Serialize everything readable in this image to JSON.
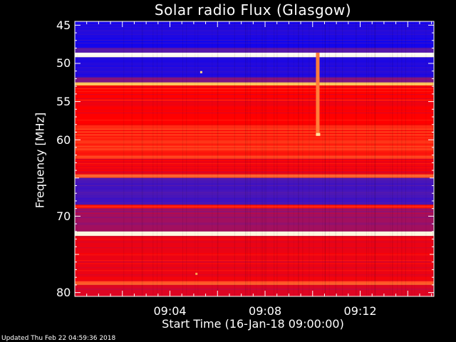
{
  "title": "Solar radio Flux (Glasgow)",
  "footer": "Updated Thu Feb 22 04:59:36 2018",
  "chart_data": {
    "type": "heatmap",
    "title": "Solar radio Flux (Glasgow)",
    "xlabel": "Start Time (16-Jan-18 09:00:00)",
    "ylabel": "Frequency [MHz]",
    "x_unit": "minutes after 09:00:00",
    "xlim": [
      0,
      15.1
    ],
    "ylim": [
      44.5,
      80.5
    ],
    "y_inverted": true,
    "xticks": [
      {
        "value": 4,
        "label": "09:04"
      },
      {
        "value": 8,
        "label": "09:08"
      },
      {
        "value": 12,
        "label": "09:12"
      }
    ],
    "yticks": [
      {
        "value": 45,
        "label": "45"
      },
      {
        "value": 50,
        "label": "50"
      },
      {
        "value": 55,
        "label": "55"
      },
      {
        "value": 60,
        "label": "60"
      },
      {
        "value": 70,
        "label": "70"
      },
      {
        "value": 80,
        "label": "80"
      }
    ],
    "colormap": [
      "#0000ff",
      "#5a1aa8",
      "#ff0000",
      "#ffd060",
      "#ffffff"
    ],
    "frequency_bands": [
      {
        "from": 44.5,
        "to": 48.0,
        "level": 0.08
      },
      {
        "from": 48.0,
        "to": 48.6,
        "level": 0.25
      },
      {
        "from": 48.6,
        "to": 49.2,
        "level": 0.97
      },
      {
        "from": 49.2,
        "to": 51.8,
        "level": 0.1
      },
      {
        "from": 51.8,
        "to": 52.5,
        "level": 0.3
      },
      {
        "from": 52.5,
        "to": 52.9,
        "level": 0.72
      },
      {
        "from": 52.9,
        "to": 58.0,
        "level": 0.5
      },
      {
        "from": 58.0,
        "to": 62.5,
        "level": 0.55
      },
      {
        "from": 62.5,
        "to": 64.5,
        "level": 0.47
      },
      {
        "from": 64.5,
        "to": 65.0,
        "level": 0.6
      },
      {
        "from": 65.0,
        "to": 68.5,
        "level": 0.2
      },
      {
        "from": 68.5,
        "to": 69.0,
        "level": 0.52
      },
      {
        "from": 69.0,
        "to": 72.0,
        "level": 0.36
      },
      {
        "from": 72.0,
        "to": 72.6,
        "level": 0.95
      },
      {
        "from": 72.6,
        "to": 78.5,
        "level": 0.47
      },
      {
        "from": 78.5,
        "to": 79.0,
        "level": 0.62
      },
      {
        "from": 79.0,
        "to": 80.5,
        "level": 0.45
      }
    ],
    "features": [
      {
        "kind": "burst_track",
        "time_min": 10.2,
        "freq_from": 48.6,
        "freq_to": 59.5,
        "peak_freq": 59.3,
        "level": 0.85
      },
      {
        "kind": "spot",
        "time_min": 5.3,
        "freq": 51.1,
        "level": 0.8
      },
      {
        "kind": "spot",
        "time_min": 5.1,
        "freq": 77.5,
        "level": 0.7
      }
    ]
  }
}
